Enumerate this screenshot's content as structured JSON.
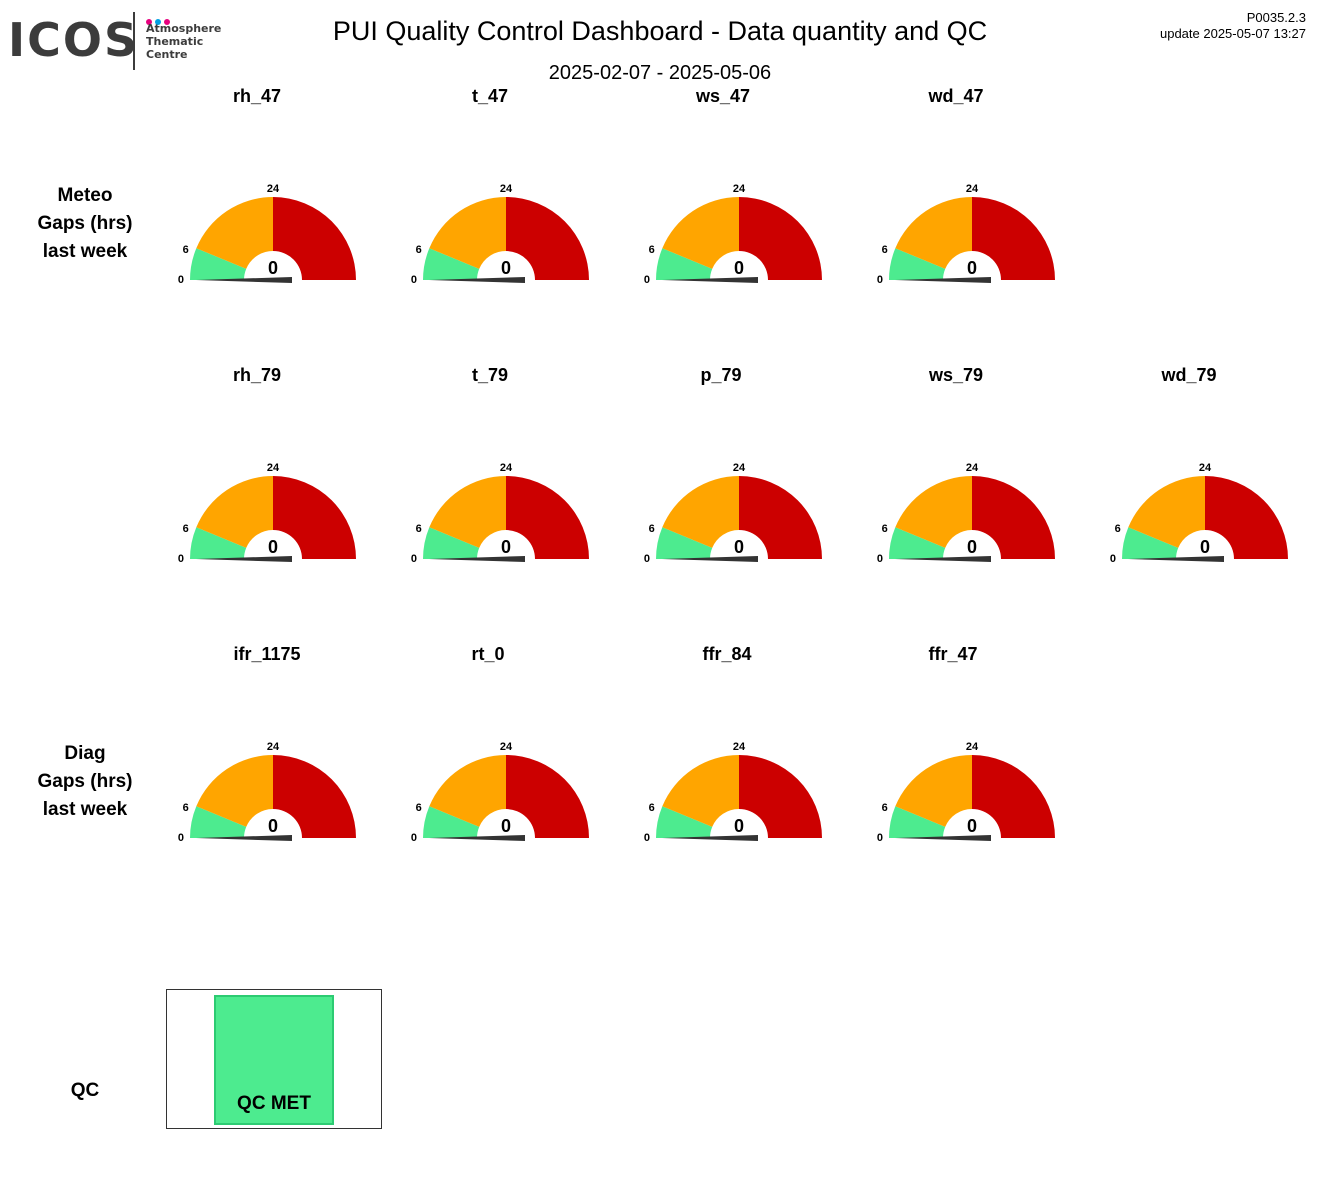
{
  "header": {
    "logo_text": "ICOS",
    "logo_sub": [
      "Atmosphere",
      "Thematic",
      "Centre"
    ],
    "title": "PUI  Quality Control Dashboard - Data quantity and QC",
    "date_range": "2025-02-07 - 2025-05-06",
    "version": "P0035.2.3",
    "update": "update  2025-05-07 13:27"
  },
  "colors": {
    "good": "#4deb8f",
    "warn": "#ffa500",
    "bad": "#cc0000",
    "needle": "#333333",
    "logo_dots": [
      "#e6007e",
      "#00a0e3",
      "#e6007e"
    ]
  },
  "rows": [
    {
      "label_lines": [
        "Meteo",
        "Gaps (hrs)",
        "last week"
      ]
    },
    {
      "label_lines": []
    },
    {
      "label_lines": [
        "Diag",
        "Gaps (hrs)",
        "last week"
      ]
    },
    {
      "label_lines": [
        "QC"
      ]
    }
  ],
  "chart_data": {
    "type": "gauge",
    "scale": {
      "min": 0,
      "max": 48,
      "ticks": [
        0,
        6,
        24,
        48
      ]
    },
    "bands": [
      {
        "from": 0,
        "to": 6,
        "color": "#4deb8f"
      },
      {
        "from": 6,
        "to": 24,
        "color": "#ffa500"
      },
      {
        "from": 24,
        "to": 48,
        "color": "#cc0000"
      }
    ],
    "gauges": [
      {
        "name": "rh_47",
        "value": 0
      },
      {
        "name": "t_47",
        "value": 0
      },
      {
        "name": "ws_47",
        "value": 0
      },
      {
        "name": "wd_47",
        "value": 0
      },
      {
        "name": "rh_79",
        "value": 0
      },
      {
        "name": "t_79",
        "value": 0
      },
      {
        "name": "p_79",
        "value": 0
      },
      {
        "name": "ws_79",
        "value": 0
      },
      {
        "name": "wd_79",
        "value": 0
      },
      {
        "name": "ifr_1175",
        "value": 0
      },
      {
        "name": "rt_0",
        "value": 0
      },
      {
        "name": "ffr_84",
        "value": 0
      },
      {
        "name": "ffr_47",
        "value": 0
      }
    ]
  },
  "qc": {
    "status": "QC MET"
  }
}
